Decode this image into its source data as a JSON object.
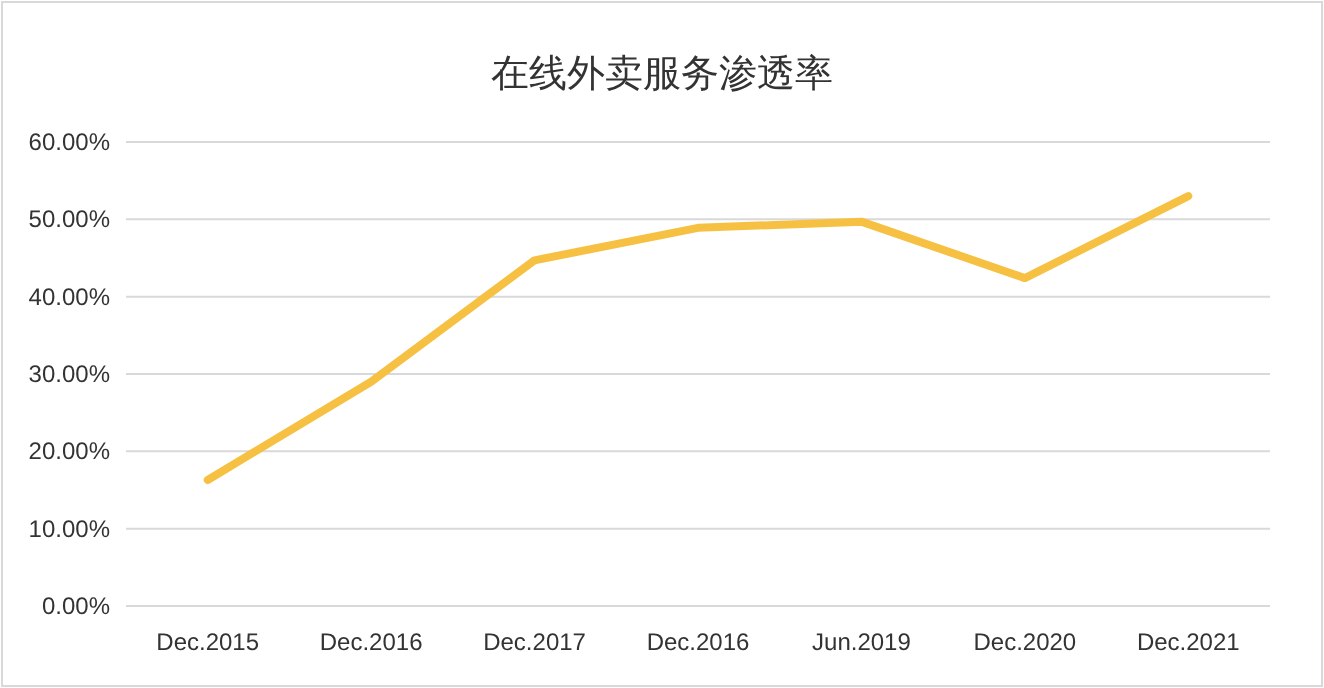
{
  "chart_data": {
    "type": "line",
    "title": "在线外卖服务渗透率",
    "categories": [
      "Dec.2015",
      "Dec.2016",
      "Dec.2017",
      "Dec.2016",
      "Jun.2019",
      "Dec.2020",
      "Dec.2021"
    ],
    "series": [
      {
        "color": "#f6c143",
        "values": [
          16.3,
          29.0,
          44.7,
          48.9,
          49.7,
          42.4,
          53.0
        ]
      }
    ],
    "ylim": [
      0,
      60
    ],
    "yticks": [
      {
        "value": 0,
        "label": "0.00%"
      },
      {
        "value": 10,
        "label": "10.00%"
      },
      {
        "value": 20,
        "label": "20.00%"
      },
      {
        "value": 30,
        "label": "30.00%"
      },
      {
        "value": 40,
        "label": "40.00%"
      },
      {
        "value": 50,
        "label": "50.00%"
      },
      {
        "value": 60,
        "label": "60.00%"
      }
    ],
    "grid": "y",
    "marker": "none",
    "line_style": "solid"
  }
}
